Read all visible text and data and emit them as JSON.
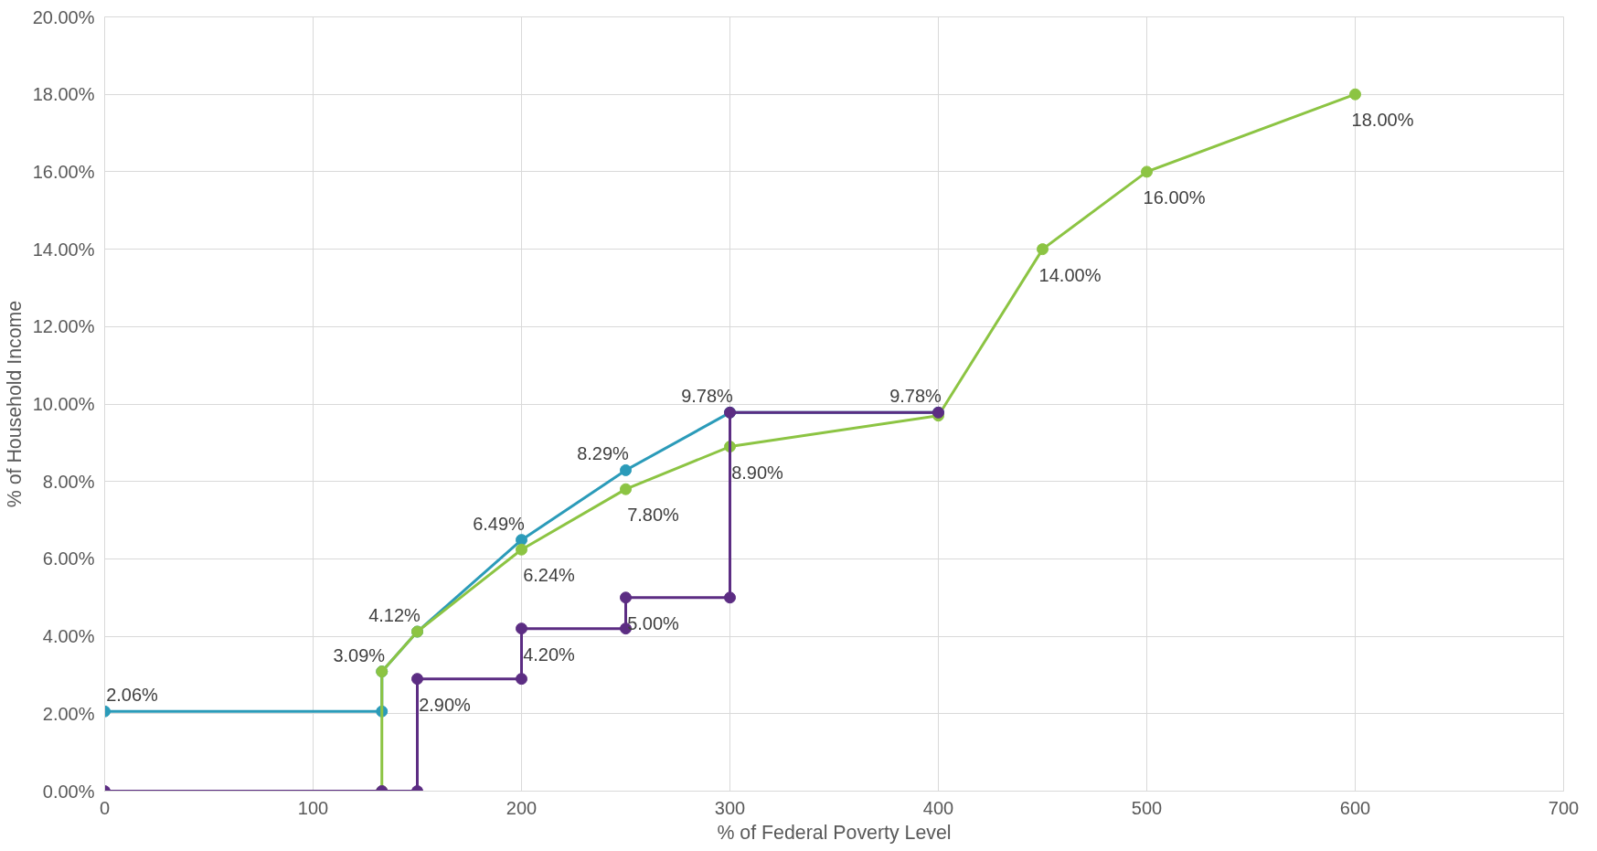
{
  "chart_data": {
    "type": "line",
    "xlabel": "% of Federal Poverty Level",
    "ylabel": "% of Household Income",
    "xlim": [
      0,
      700
    ],
    "xticks": [
      0,
      100,
      200,
      300,
      400,
      500,
      600,
      700
    ],
    "ylim": [
      0,
      20
    ],
    "yticks": [
      {
        "value": 0,
        "label": "0.00%"
      },
      {
        "value": 2,
        "label": "2.00%"
      },
      {
        "value": 4,
        "label": "4.00%"
      },
      {
        "value": 6,
        "label": "6.00%"
      },
      {
        "value": 8,
        "label": "8.00%"
      },
      {
        "value": 10,
        "label": "10.00%"
      },
      {
        "value": 12,
        "label": "12.00%"
      },
      {
        "value": 14,
        "label": "14.00%"
      },
      {
        "value": 16,
        "label": "16.00%"
      },
      {
        "value": 18,
        "label": "18.00%"
      },
      {
        "value": 20,
        "label": "20.00%"
      }
    ],
    "grid": true,
    "marker": "circle",
    "line_style": "solid",
    "series": [
      {
        "color": "#2b9bb9",
        "x": [
          0,
          133,
          133,
          150,
          200,
          250,
          300,
          400
        ],
        "values": [
          2.06,
          2.06,
          3.09,
          4.12,
          6.49,
          8.29,
          9.78,
          9.78
        ],
        "value_labels": [
          "2.06%",
          null,
          "3.09%",
          "4.12%",
          "6.49%",
          "8.29%",
          "9.78%",
          "9.78%"
        ]
      },
      {
        "color": "#8cc443",
        "x": [
          133,
          133,
          150,
          200,
          250,
          300,
          400,
          450,
          500,
          600
        ],
        "values": [
          0,
          3.09,
          4.12,
          6.24,
          7.8,
          8.9,
          9.7,
          14,
          16,
          18
        ],
        "value_labels": [
          null,
          null,
          null,
          "6.24%",
          "7.80%",
          "8.90%",
          null,
          "14.00%",
          "16.00%",
          "18.00%"
        ]
      },
      {
        "color": "#5c2d83",
        "x": [
          0,
          133,
          150,
          150,
          200,
          200,
          250,
          250,
          300,
          300,
          400
        ],
        "values": [
          0,
          0,
          0,
          2.9,
          2.9,
          4.2,
          4.2,
          5,
          5,
          9.78,
          9.78
        ],
        "value_labels": [
          null,
          null,
          null,
          "2.90%",
          null,
          "4.20%",
          null,
          "5.00%",
          null,
          null,
          null
        ]
      }
    ]
  }
}
